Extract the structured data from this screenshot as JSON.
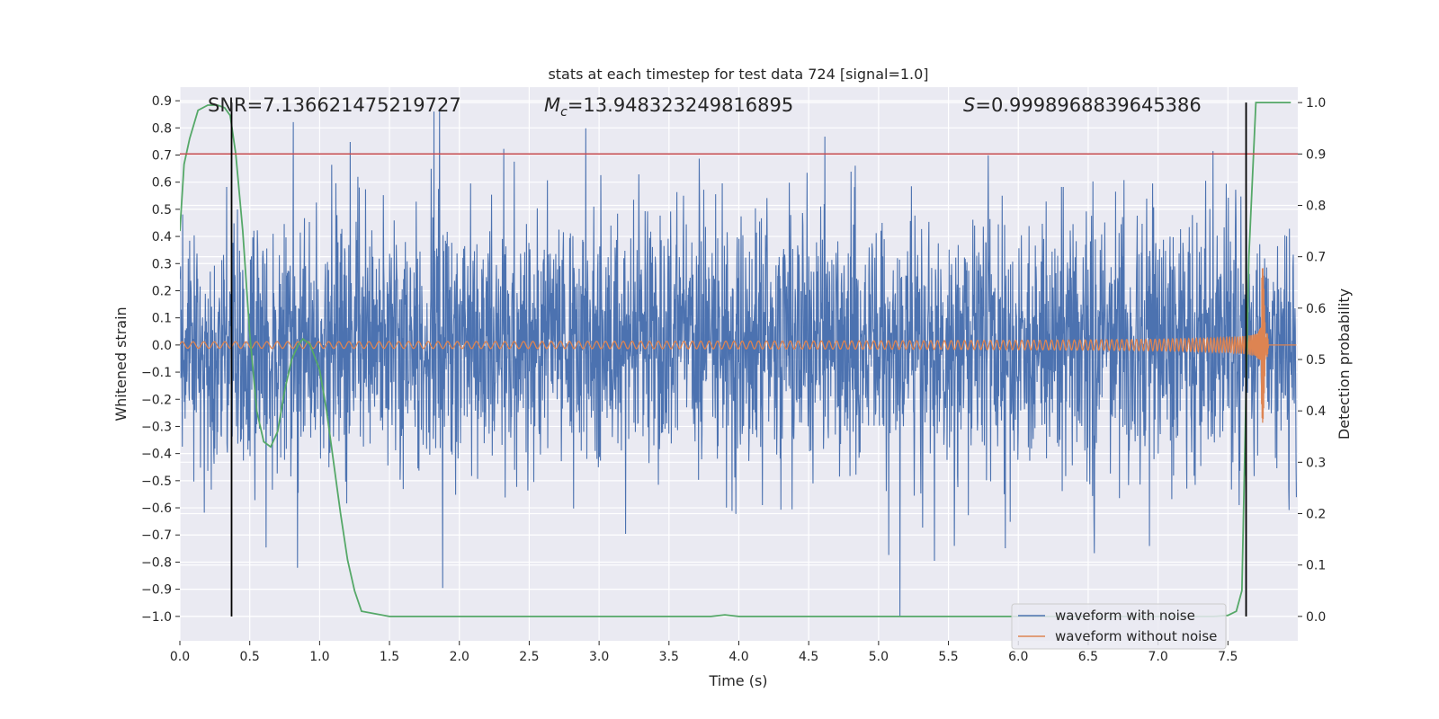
{
  "chart_data": {
    "type": "line",
    "title": "stats at each timestep for test data 724 [signal=1.0]",
    "xlabel": "Time (s)",
    "ylabel_left": "Whitened strain",
    "ylabel_right": "Detection probability",
    "xlim": [
      0.0,
      8.0
    ],
    "ylim_left": [
      -1.09,
      0.95
    ],
    "ylim_right": [
      -0.0475,
      1.03
    ],
    "x_ticks": [
      "0.0",
      "0.5",
      "1.0",
      "1.5",
      "2.0",
      "2.5",
      "3.0",
      "3.5",
      "4.0",
      "4.5",
      "5.0",
      "5.5",
      "6.0",
      "6.5",
      "7.0",
      "7.5"
    ],
    "y_ticks_left": [
      "0.9",
      "0.8",
      "0.7",
      "0.6",
      "0.5",
      "0.4",
      "0.3",
      "0.2",
      "0.1",
      "0.0",
      "−0.1",
      "−0.2",
      "−0.3",
      "−0.4",
      "−0.5",
      "−0.6",
      "−0.7",
      "−0.8",
      "−0.9",
      "−1.0"
    ],
    "y_ticks_right": [
      "1.0",
      "0.9",
      "0.8",
      "0.7",
      "0.6",
      "0.5",
      "0.4",
      "0.3",
      "0.2",
      "0.1",
      "0.0"
    ],
    "annotations": {
      "snr": "SNR=7.136621475219727",
      "mc_symbol": "M",
      "mc_sub": "c",
      "mc_value": "=13.948323249816895",
      "s_symbol": "S",
      "s_value": "=0.9998968839645386"
    },
    "threshold_probability": 0.9,
    "vertical_markers_x": [
      0.37,
      7.63
    ],
    "series": [
      {
        "name": "waveform with noise",
        "color": "#4c72b0",
        "description_values": {
          "typical_amplitude": 0.28,
          "peak_max": 0.86,
          "peak_min": -1.0,
          "x_end": 7.99
        }
      },
      {
        "name": "waveform without noise",
        "color": "#dd8452",
        "chirp": {
          "amp_start": 0.012,
          "amp_peak": 0.36,
          "t_merger": 7.74,
          "f_start": 13,
          "f_end": 250
        }
      },
      {
        "name": "detection probability",
        "color": "#55a868",
        "axis": "right",
        "x": [
          0.0,
          0.03,
          0.07,
          0.13,
          0.2,
          0.27,
          0.32,
          0.36,
          0.4,
          0.45,
          0.5,
          0.55,
          0.6,
          0.65,
          0.7,
          0.75,
          0.8,
          0.85,
          0.88,
          0.93,
          1.0,
          1.05,
          1.1,
          1.15,
          1.2,
          1.25,
          1.3,
          1.5,
          2.0,
          3.0,
          3.8,
          3.9,
          4.0,
          4.5,
          5.0,
          6.0,
          7.0,
          7.4,
          7.5,
          7.56,
          7.6,
          7.65,
          7.7,
          7.8,
          7.95
        ],
        "y": [
          0.75,
          0.88,
          0.93,
          0.985,
          0.995,
          0.995,
          0.99,
          0.975,
          0.9,
          0.75,
          0.55,
          0.4,
          0.34,
          0.33,
          0.36,
          0.44,
          0.5,
          0.53,
          0.54,
          0.53,
          0.48,
          0.4,
          0.3,
          0.2,
          0.11,
          0.05,
          0.01,
          0.0,
          0.0,
          0.0,
          0.0,
          0.003,
          0.0,
          0.0,
          0.0,
          0.0,
          0.0,
          0.0,
          0.002,
          0.01,
          0.05,
          0.7,
          1.0,
          1.0,
          1.0
        ]
      }
    ],
    "legend_position": "lower-right"
  }
}
